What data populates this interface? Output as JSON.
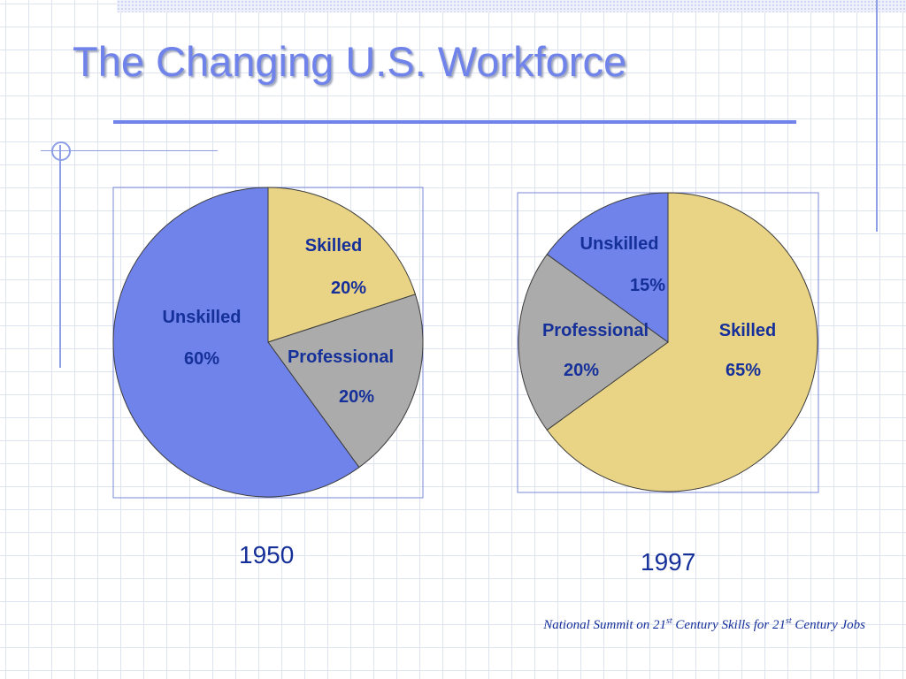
{
  "title": "The Changing U.S. Workforce",
  "colors": {
    "title": "#6f83ea",
    "unskilled": "#6f83ea",
    "skilled": "#e9d385",
    "professional": "#ababab",
    "label": "#16309a"
  },
  "chart_data": [
    {
      "type": "pie",
      "caption": "1950",
      "slices": [
        {
          "label": "Skilled",
          "value": 20,
          "value_label": "20%",
          "color": "#e9d385"
        },
        {
          "label": "Professional",
          "value": 20,
          "value_label": "20%",
          "color": "#ababab"
        },
        {
          "label": "Unskilled",
          "value": 60,
          "value_label": "60%",
          "color": "#6f83ea"
        }
      ]
    },
    {
      "type": "pie",
      "caption": "1997",
      "slices": [
        {
          "label": "Skilled",
          "value": 65,
          "value_label": "65%",
          "color": "#e9d385"
        },
        {
          "label": "Professional",
          "value": 20,
          "value_label": "20%",
          "color": "#ababab"
        },
        {
          "label": "Unskilled",
          "value": 15,
          "value_label": "15%",
          "color": "#6f83ea"
        }
      ]
    }
  ],
  "source": {
    "part1": "National Summit on 21",
    "sup1": "st",
    "part2": " Century Skills for 21",
    "sup2": "st",
    "part3": " Century Jobs"
  }
}
